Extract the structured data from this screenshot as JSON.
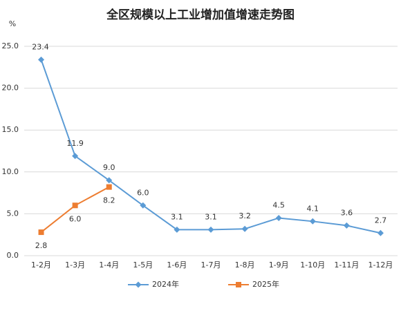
{
  "chart_data": {
    "type": "line",
    "title": "全区规模以上工业增加值增速走势图",
    "y_unit": "%",
    "categories": [
      "1-2月",
      "1-3月",
      "1-4月",
      "1-5月",
      "1-6月",
      "1-7月",
      "1-8月",
      "1-9月",
      "1-10月",
      "1-11月",
      "1-12月"
    ],
    "series": [
      {
        "name": "2024年",
        "color": "#5b9bd5",
        "marker": "diamond",
        "values": [
          23.4,
          11.9,
          9.0,
          6.0,
          3.1,
          3.1,
          3.2,
          4.5,
          4.1,
          3.6,
          2.7
        ],
        "value_labels": [
          "23.4",
          "11.9",
          "9.0",
          "6.0",
          "3.1",
          "3.1",
          "3.2",
          "4.5",
          "4.1",
          "3.6",
          "2.7"
        ]
      },
      {
        "name": "2025年",
        "color": "#ed7d31",
        "marker": "square",
        "values": [
          2.8,
          6.0,
          8.2,
          null,
          null,
          null,
          null,
          null,
          null,
          null,
          null
        ],
        "value_labels": [
          "2.8",
          "6.0",
          "8.2",
          null,
          null,
          null,
          null,
          null,
          null,
          null,
          null
        ]
      }
    ],
    "ylim": [
      0,
      25
    ],
    "yticks": [
      {
        "value": 0,
        "label": "0.0"
      },
      {
        "value": 5,
        "label": "5.0"
      },
      {
        "value": 10,
        "label": "10.0"
      },
      {
        "value": 15,
        "label": "15.0"
      },
      {
        "value": 20,
        "label": "20.0"
      },
      {
        "value": 25,
        "label": "25.0"
      }
    ],
    "grid": true,
    "legend": "bottom"
  }
}
